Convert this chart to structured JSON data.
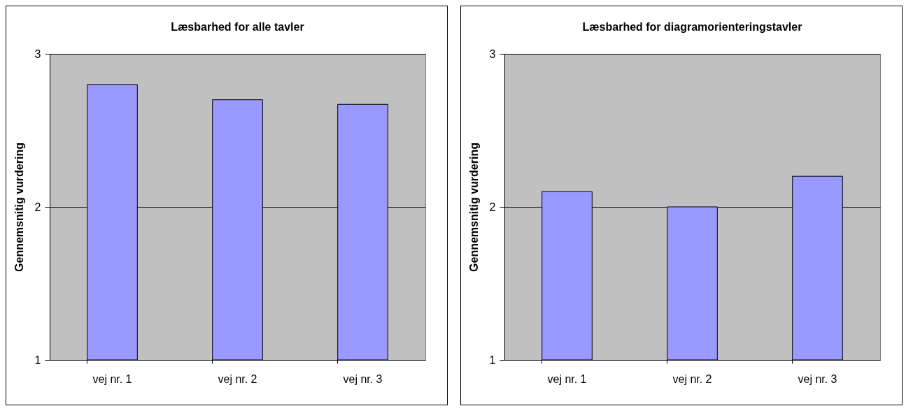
{
  "chart_data": [
    {
      "type": "bar",
      "title": "Læsbarhed for alle tavler",
      "ylabel": "Gennemsnitig vurdering",
      "categories": [
        "vej nr. 1",
        "vej nr. 2",
        "vej nr. 3"
      ],
      "values": [
        2.8,
        2.7,
        2.67
      ],
      "color": "#9999ff",
      "ylim": [
        1,
        3
      ],
      "yticks": [
        1,
        2,
        3
      ],
      "grid": "y"
    },
    {
      "type": "bar",
      "title": "Læsbarhed for diagramorienteringstavler",
      "ylabel": "Gennemsnitig vurdering",
      "categories": [
        "vej nr. 1",
        "vej nr. 2",
        "vej nr. 3"
      ],
      "values": [
        2.1,
        2.0,
        2.2
      ],
      "color": "#9999ff",
      "ylim": [
        1,
        3
      ],
      "yticks": [
        1,
        2,
        3
      ],
      "grid": "y"
    }
  ]
}
